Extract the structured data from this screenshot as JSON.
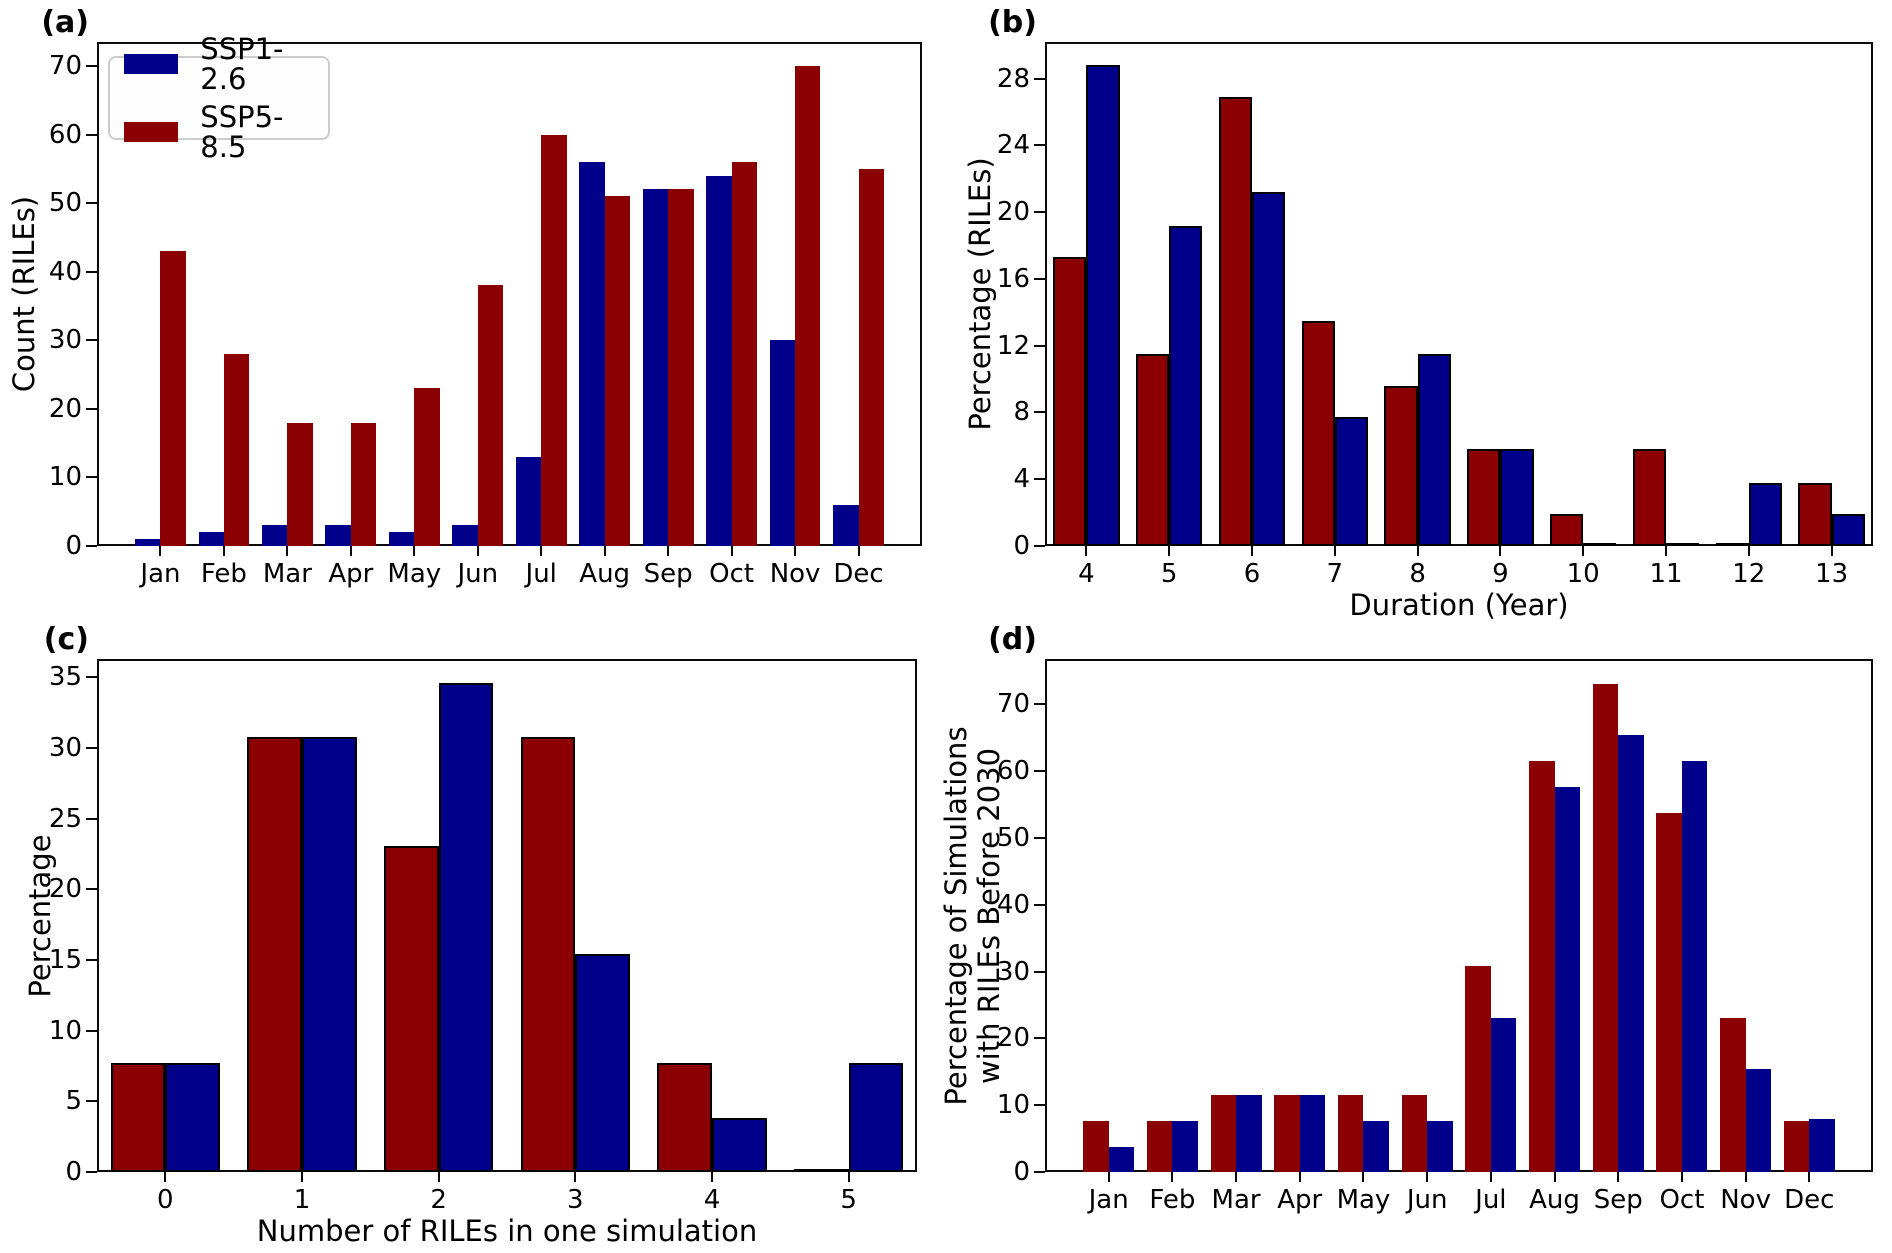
{
  "figure": {
    "background": "#ffffff",
    "colors": {
      "ssp126": "#00008B",
      "ssp585": "#8B0000",
      "axis": "#0a0a0a"
    },
    "legend": {
      "position": "upper-left-of-panel-a",
      "items": [
        {
          "label": "SSP1-2.6",
          "color_key": "ssp126"
        },
        {
          "label": "SSP5-8.5",
          "color_key": "ssp585"
        }
      ]
    }
  },
  "chart_data": [
    {
      "id": "a",
      "panel_label": "(a)",
      "type": "bar",
      "ylabel": "Count (RILEs)",
      "xlabel": "",
      "categories": [
        "Jan",
        "Feb",
        "Mar",
        "Apr",
        "May",
        "Jun",
        "Jul",
        "Aug",
        "Sep",
        "Oct",
        "Nov",
        "Dec"
      ],
      "series": [
        {
          "name": "SSP1-2.6",
          "color": "#00008B",
          "values": [
            1,
            2,
            3,
            3,
            2,
            3,
            13,
            56,
            52,
            54,
            30,
            6
          ]
        },
        {
          "name": "SSP5-8.5",
          "color": "#8B0000",
          "values": [
            43,
            28,
            18,
            18,
            23,
            38,
            60,
            51,
            52,
            56,
            70,
            55
          ]
        }
      ],
      "ylim": [
        0,
        73.5
      ],
      "yticks": [
        0,
        10,
        20,
        30,
        40,
        50,
        60,
        70
      ],
      "bar_edge": false,
      "legend": true,
      "grid": false
    },
    {
      "id": "b",
      "panel_label": "(b)",
      "type": "bar",
      "ylabel": "Percentage (RILEs)",
      "xlabel": "Duration (Year)",
      "categories": [
        "4",
        "5",
        "6",
        "7",
        "8",
        "9",
        "10",
        "11",
        "12",
        "13"
      ],
      "series": [
        {
          "name": "SSP5-8.5",
          "color": "#8B0000",
          "values": [
            17.3,
            11.5,
            26.9,
            13.5,
            9.6,
            5.8,
            1.9,
            5.8,
            0,
            3.8
          ]
        },
        {
          "name": "SSP1-2.6",
          "color": "#00008B",
          "values": [
            28.8,
            19.2,
            21.2,
            7.7,
            11.5,
            5.8,
            0,
            0,
            3.8,
            1.9
          ]
        }
      ],
      "ylim": [
        0,
        30.2
      ],
      "yticks": [
        0,
        4,
        8,
        12,
        16,
        20,
        24,
        28
      ],
      "bar_edge": true,
      "legend": false,
      "grid": false
    },
    {
      "id": "c",
      "panel_label": "(c)",
      "type": "bar",
      "ylabel": "Percentage",
      "xlabel": "Number of RILEs in one simulation",
      "categories": [
        "0",
        "1",
        "2",
        "3",
        "4",
        "5"
      ],
      "series": [
        {
          "name": "SSP5-8.5",
          "color": "#8B0000",
          "values": [
            7.7,
            30.8,
            23.1,
            30.8,
            7.7,
            0
          ]
        },
        {
          "name": "SSP1-2.6",
          "color": "#00008B",
          "values": [
            7.7,
            30.8,
            34.6,
            15.4,
            3.8,
            7.7
          ]
        }
      ],
      "ylim": [
        0,
        36.3
      ],
      "yticks": [
        0,
        5,
        10,
        15,
        20,
        25,
        30,
        35
      ],
      "bar_edge": true,
      "legend": false,
      "grid": false
    },
    {
      "id": "d",
      "panel_label": "(d)",
      "type": "bar",
      "ylabel_lines": [
        "Percentage of Simulations",
        "with RILEs Before 2030"
      ],
      "xlabel": "",
      "categories": [
        "Jan",
        "Feb",
        "Mar",
        "Apr",
        "May",
        "Jun",
        "Jul",
        "Aug",
        "Sep",
        "Oct",
        "Nov",
        "Dec"
      ],
      "series": [
        {
          "name": "SSP5-8.5",
          "color": "#8B0000",
          "values": [
            7.7,
            7.7,
            11.5,
            11.5,
            11.5,
            11.5,
            30.8,
            61.5,
            73.1,
            53.8,
            23.1,
            7.7
          ]
        },
        {
          "name": "SSP1-2.6",
          "color": "#00008B",
          "values": [
            3.8,
            7.7,
            11.5,
            11.5,
            7.7,
            7.7,
            23.1,
            57.7,
            65.4,
            61.5,
            15.4,
            8.0
          ]
        }
      ],
      "ylim": [
        0,
        76.8
      ],
      "yticks": [
        0,
        10,
        20,
        30,
        40,
        50,
        60,
        70
      ],
      "bar_edge": false,
      "legend": false,
      "grid": false
    }
  ]
}
